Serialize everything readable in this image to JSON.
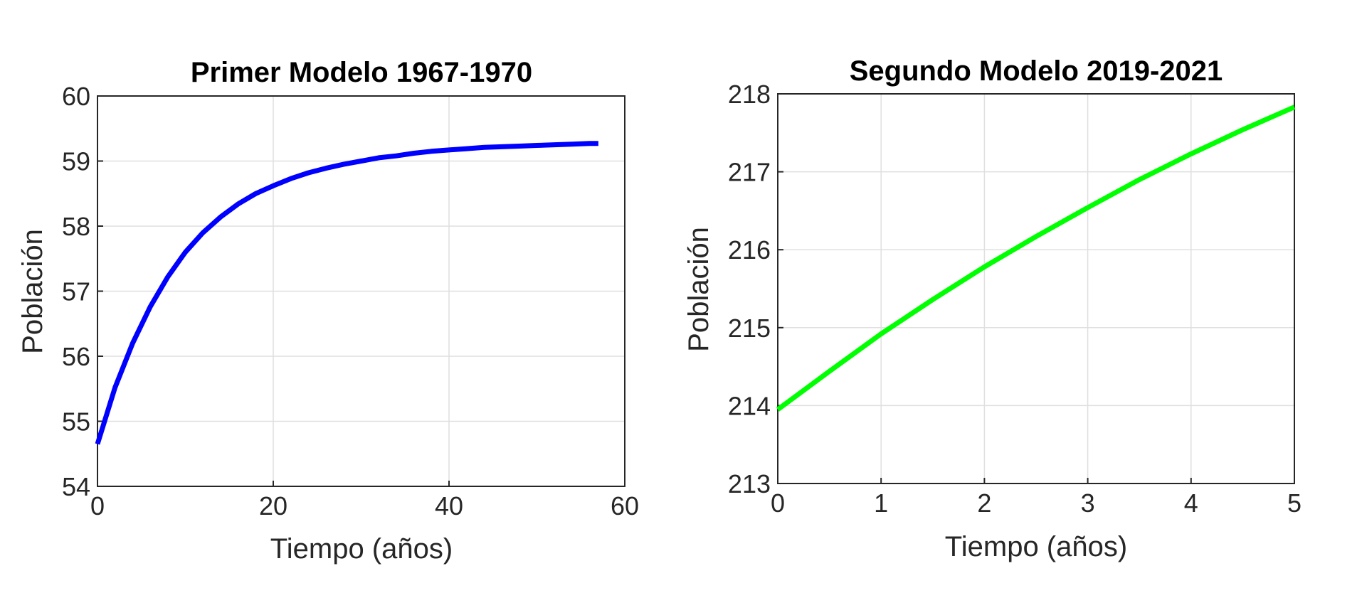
{
  "chart_data": [
    {
      "type": "line",
      "title": "Primer Modelo 1967-1970",
      "xlabel": "Tiempo (años)",
      "ylabel": "Población",
      "xlim": [
        0,
        60
      ],
      "ylim": [
        54,
        60
      ],
      "xticks": [
        0,
        20,
        40,
        60
      ],
      "yticks": [
        54,
        55,
        56,
        57,
        58,
        59,
        60
      ],
      "grid": true,
      "series": [
        {
          "color": "#0000ff",
          "x": [
            0,
            2,
            4,
            6,
            8,
            10,
            12,
            14,
            16,
            18,
            20,
            22,
            24,
            26,
            28,
            30,
            32,
            34,
            36,
            38,
            40,
            42,
            44,
            46,
            48,
            50,
            52,
            54,
            56,
            57
          ],
          "y": [
            54.65,
            55.52,
            56.2,
            56.76,
            57.22,
            57.6,
            57.9,
            58.14,
            58.34,
            58.5,
            58.62,
            58.73,
            58.82,
            58.89,
            58.95,
            59.0,
            59.05,
            59.08,
            59.12,
            59.15,
            59.17,
            59.19,
            59.21,
            59.22,
            59.23,
            59.24,
            59.25,
            59.26,
            59.27,
            59.27
          ]
        }
      ]
    },
    {
      "type": "line",
      "title": "Segundo Modelo 2019-2021",
      "xlabel": "Tiempo (años)",
      "ylabel": "Población",
      "xlim": [
        0,
        5
      ],
      "ylim": [
        213,
        218
      ],
      "xticks": [
        0,
        1,
        2,
        3,
        4,
        5
      ],
      "yticks": [
        213,
        214,
        215,
        216,
        217,
        218
      ],
      "grid": true,
      "series": [
        {
          "color": "#00ff00",
          "x": [
            0,
            0.5,
            1,
            1.5,
            2,
            2.5,
            3,
            3.5,
            4,
            4.5,
            5
          ],
          "y": [
            213.95,
            214.44,
            214.92,
            215.36,
            215.78,
            216.17,
            216.54,
            216.9,
            217.23,
            217.54,
            217.83
          ]
        }
      ]
    }
  ]
}
